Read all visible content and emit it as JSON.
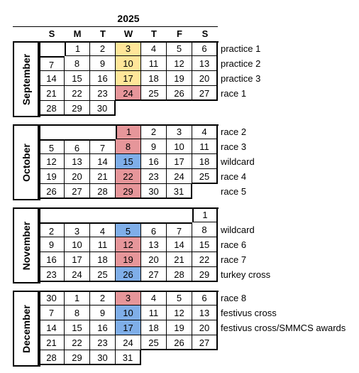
{
  "year": "2025",
  "weekdays": [
    "S",
    "M",
    "T",
    "W",
    "T",
    "F",
    "S"
  ],
  "colors": {
    "practice": "#FFE699",
    "race": "#E6969A",
    "wildcard": "#7FAEE8"
  },
  "months": [
    {
      "name": "September",
      "weeks": [
        [
          "",
          "1",
          "2",
          "3",
          "4",
          "5",
          "6"
        ],
        [
          "7",
          "8",
          "9",
          "10",
          "11",
          "12",
          "13"
        ],
        [
          "14",
          "15",
          "16",
          "17",
          "18",
          "19",
          "20"
        ],
        [
          "21",
          "22",
          "23",
          "24",
          "25",
          "26",
          "27"
        ],
        [
          "28",
          "29",
          "30",
          "",
          "",
          "",
          ""
        ]
      ],
      "highlights": [
        [
          "",
          "",
          "",
          "practice",
          "",
          "",
          ""
        ],
        [
          "",
          "",
          "",
          "practice",
          "",
          "",
          ""
        ],
        [
          "",
          "",
          "",
          "practice",
          "",
          "",
          ""
        ],
        [
          "",
          "",
          "",
          "race",
          "",
          "",
          ""
        ],
        [
          "",
          "",
          "",
          "",
          "",
          "",
          ""
        ]
      ],
      "events": [
        "practice 1",
        "practice 2",
        "practice 3",
        "race 1",
        ""
      ]
    },
    {
      "name": "October",
      "weeks": [
        [
          "",
          "",
          "",
          "1",
          "2",
          "3",
          "4"
        ],
        [
          "5",
          "6",
          "7",
          "8",
          "9",
          "10",
          "11"
        ],
        [
          "12",
          "13",
          "14",
          "15",
          "16",
          "17",
          "18"
        ],
        [
          "19",
          "20",
          "21",
          "22",
          "23",
          "24",
          "25"
        ],
        [
          "26",
          "27",
          "28",
          "29",
          "30",
          "31",
          ""
        ]
      ],
      "highlights": [
        [
          "",
          "",
          "",
          "race",
          "",
          "",
          ""
        ],
        [
          "",
          "",
          "",
          "race",
          "",
          "",
          ""
        ],
        [
          "",
          "",
          "",
          "wildcard",
          "",
          "",
          ""
        ],
        [
          "",
          "",
          "",
          "race",
          "",
          "",
          ""
        ],
        [
          "",
          "",
          "",
          "race",
          "",
          "",
          ""
        ]
      ],
      "events": [
        "race 2",
        "race 3",
        "wildcard",
        "race 4",
        "race 5"
      ]
    },
    {
      "name": "November",
      "weeks": [
        [
          "",
          "",
          "",
          "",
          "",
          "",
          "1"
        ],
        [
          "2",
          "3",
          "4",
          "5",
          "6",
          "7",
          "8"
        ],
        [
          "9",
          "10",
          "11",
          "12",
          "13",
          "14",
          "15"
        ],
        [
          "16",
          "17",
          "18",
          "19",
          "20",
          "21",
          "22"
        ],
        [
          "23",
          "24",
          "25",
          "26",
          "27",
          "28",
          "29"
        ]
      ],
      "highlights": [
        [
          "",
          "",
          "",
          "",
          "",
          "",
          ""
        ],
        [
          "",
          "",
          "",
          "wildcard",
          "",
          "",
          ""
        ],
        [
          "",
          "",
          "",
          "race",
          "",
          "",
          ""
        ],
        [
          "",
          "",
          "",
          "race",
          "",
          "",
          ""
        ],
        [
          "",
          "",
          "",
          "wildcard",
          "",
          "",
          ""
        ]
      ],
      "events": [
        "",
        "wildcard",
        "race 6",
        "race 7",
        "turkey cross"
      ]
    },
    {
      "name": "December",
      "weeks": [
        [
          "30",
          "1",
          "2",
          "3",
          "4",
          "5",
          "6"
        ],
        [
          "7",
          "8",
          "9",
          "10",
          "11",
          "12",
          "13"
        ],
        [
          "14",
          "15",
          "16",
          "17",
          "18",
          "19",
          "20"
        ],
        [
          "21",
          "22",
          "23",
          "24",
          "25",
          "26",
          "27"
        ],
        [
          "28",
          "29",
          "30",
          "31",
          "",
          "",
          ""
        ]
      ],
      "highlights": [
        [
          "",
          "",
          "",
          "race",
          "",
          "",
          ""
        ],
        [
          "",
          "",
          "",
          "wildcard",
          "",
          "",
          ""
        ],
        [
          "",
          "",
          "",
          "wildcard",
          "",
          "",
          ""
        ],
        [
          "",
          "",
          "",
          "",
          "",
          "",
          ""
        ],
        [
          "",
          "",
          "",
          "",
          "",
          "",
          ""
        ]
      ],
      "events": [
        "race 8",
        "festivus cross",
        "festivus cross/SMMCS awards",
        "",
        ""
      ]
    }
  ]
}
